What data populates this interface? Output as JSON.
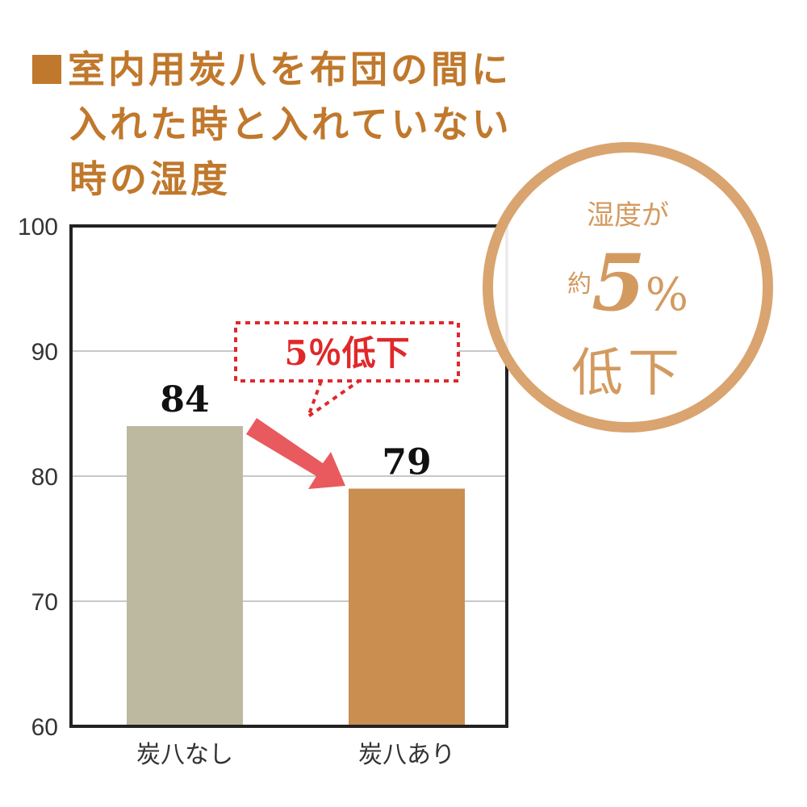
{
  "title_lines": [
    "室内用炭八を布団の間に",
    "入れた時と入れていない",
    "時の湿度"
  ],
  "badge": {
    "line1": "湿度が",
    "prefix": "約",
    "number": "5",
    "unit": "%",
    "line3": "低下"
  },
  "callout": "5％低下",
  "colors": {
    "title": "#c0782c",
    "bar_without": "#bdb8a0",
    "bar_with": "#c98e50",
    "arrow": "#e85a5e",
    "callout": "#e0282a",
    "badge": "#d9a46f"
  },
  "chart_data": {
    "type": "bar",
    "categories": [
      "炭八なし",
      "炭八あり"
    ],
    "values": [
      84,
      79
    ],
    "data_labels": [
      "84",
      "79"
    ],
    "ylim": [
      60,
      100
    ],
    "yticks": [
      60,
      70,
      80,
      90,
      100
    ],
    "grid": true,
    "xlabel": "",
    "ylabel": ""
  }
}
